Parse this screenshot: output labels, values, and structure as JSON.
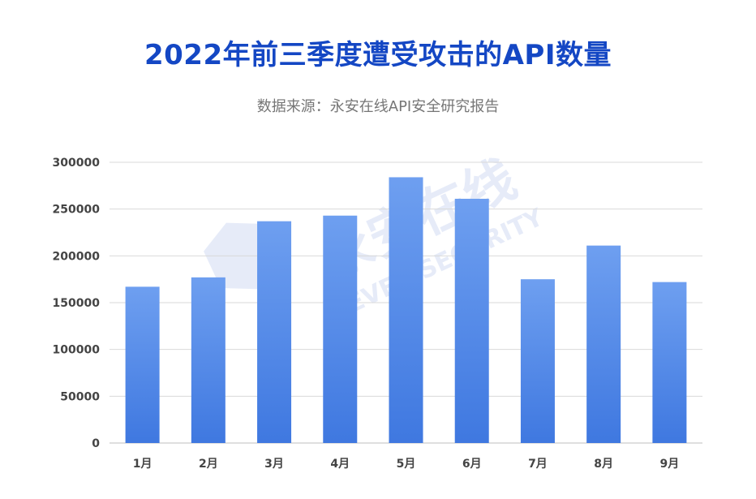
{
  "title": "2022年前三季度遭受攻击的API数量",
  "subtitle": "数据来源：永安在线API安全研究报告",
  "watermark": {
    "cn": "永安在线",
    "en": "EVER SECURITY"
  },
  "colors": {
    "title": "#1447c4",
    "bar_top": "#6e9ff0",
    "bar_bottom": "#3f78e0",
    "grid": "#d9d9d9"
  },
  "chart_data": {
    "type": "bar",
    "categories": [
      "1月",
      "2月",
      "3月",
      "4月",
      "5月",
      "6月",
      "7月",
      "8月",
      "9月"
    ],
    "values": [
      167000,
      177000,
      237000,
      243000,
      284000,
      261000,
      175000,
      211000,
      172000
    ],
    "ylim": [
      0,
      300000
    ],
    "yticks": [
      0,
      50000,
      100000,
      150000,
      200000,
      250000,
      300000
    ],
    "title": "2022年前三季度遭受攻击的API数量",
    "xlabel": "",
    "ylabel": "",
    "grid": true
  }
}
